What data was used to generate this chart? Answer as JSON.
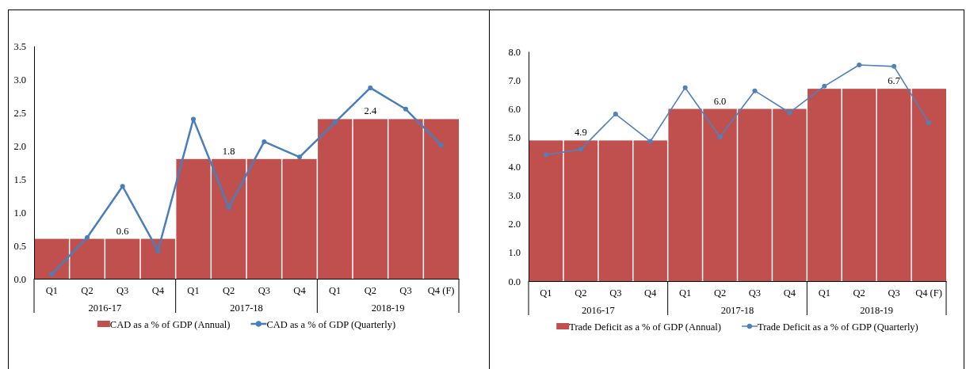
{
  "chart_data": [
    {
      "type": "bar",
      "categories": [
        "Q1",
        "Q2",
        "Q3",
        "Q4",
        "Q1",
        "Q2",
        "Q3",
        "Q4",
        "Q1",
        "Q2",
        "Q3",
        "Q4 (F)"
      ],
      "annotations": [
        "2016-17",
        "2017-18",
        "2018-19"
      ],
      "ylim": [
        0,
        3.5
      ],
      "yticks": [
        {
          "value": 0,
          "label": "0.0"
        },
        0.5,
        {
          "value": 1,
          "label": "1.0"
        },
        1.5,
        {
          "value": 2,
          "label": "2.0"
        },
        2.5,
        {
          "value": 3,
          "label": "3.0"
        },
        3.5
      ],
      "legend": "bottom",
      "series": [
        {
          "name": "CAD as a % of GDP (Annual)",
          "color": "#c0504d",
          "values": [
            0.6,
            0.6,
            0.6,
            0.6,
            1.8,
            1.8,
            1.8,
            1.8,
            2.4,
            2.4,
            2.4,
            2.4
          ],
          "value_labels": [
            null,
            null,
            "0.6",
            null,
            null,
            "1.8",
            null,
            null,
            null,
            "2.4",
            null,
            null
          ]
        },
        {
          "name": "CAD as a % of GDP (Quarterly)",
          "type": "line",
          "marker": "circle",
          "color": "#4a7ebb",
          "values": [
            0.07,
            0.62,
            1.39,
            0.42,
            2.4,
            1.07,
            2.06,
            1.83,
            2.35,
            2.87,
            2.55,
            2.01
          ]
        }
      ]
    },
    {
      "type": "bar",
      "categories": [
        "Q1",
        "Q2",
        "Q3",
        "Q4",
        "Q1",
        "Q2",
        "Q3",
        "Q4",
        "Q1",
        "Q2",
        "Q3",
        "Q4 (F)"
      ],
      "annotations": [
        "2016-17",
        "2017-18",
        "2018-19"
      ],
      "ylim": [
        0,
        8
      ],
      "yticks": [
        {
          "value": 0,
          "label": "0.0"
        },
        {
          "value": 1,
          "label": "1.0"
        },
        {
          "value": 2,
          "label": "2.0"
        },
        {
          "value": 3,
          "label": "3.0"
        },
        {
          "value": 4,
          "label": "4.0"
        },
        {
          "value": 5,
          "label": "5.0"
        },
        {
          "value": 6,
          "label": "6.0"
        },
        {
          "value": 7,
          "label": "7.0"
        },
        {
          "value": 8,
          "label": "8.0"
        }
      ],
      "legend": "bottom",
      "series": [
        {
          "name": "Trade Deficit as a % of GDP (Annual)",
          "color": "#c0504d",
          "values": [
            4.9,
            4.9,
            4.9,
            4.9,
            6.0,
            6.0,
            6.0,
            6.0,
            6.7,
            6.7,
            6.7,
            6.7
          ],
          "value_labels": [
            null,
            "4.9",
            null,
            null,
            null,
            "6.0",
            null,
            null,
            null,
            null,
            "6.7",
            null
          ]
        },
        {
          "name": "Trade Deficit as a % of GDP (Quarterly)",
          "type": "line",
          "marker": "circle",
          "color": "#4f81bd",
          "values": [
            4.4,
            4.59,
            5.82,
            4.87,
            6.74,
            5.02,
            6.63,
            5.87,
            6.79,
            7.53,
            7.48,
            5.52
          ]
        }
      ]
    }
  ]
}
